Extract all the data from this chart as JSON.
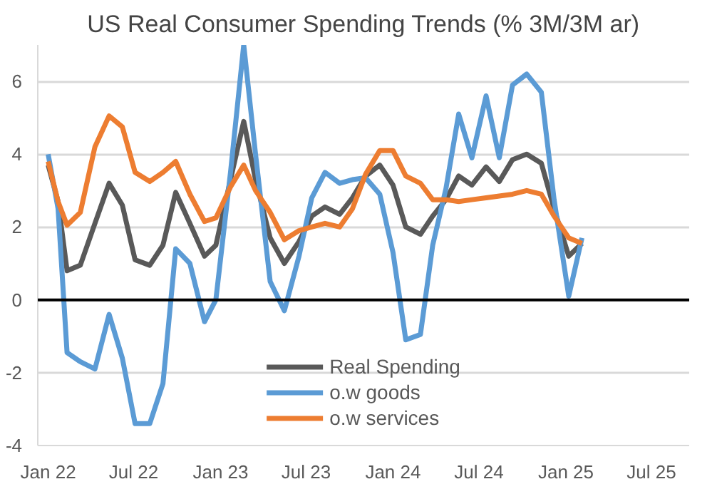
{
  "chart_data": {
    "type": "line",
    "title": "US Real Consumer Spending Trends (% 3M/3M ar)",
    "x": [
      "2022-01-01",
      "2022-01-22",
      "2022-02-10",
      "2022-03-10",
      "2022-04-10",
      "2022-05-10",
      "2022-06-07",
      "2022-07-04",
      "2022-08-04",
      "2022-09-01",
      "2022-09-28",
      "2022-10-28",
      "2022-11-28",
      "2022-12-22",
      "2023-01-22",
      "2023-02-19",
      "2023-03-16",
      "2023-04-16",
      "2023-05-16",
      "2023-06-16",
      "2023-07-13",
      "2023-08-10",
      "2023-09-10",
      "2023-10-07",
      "2023-11-04",
      "2023-12-04",
      "2024-01-01",
      "2024-01-28",
      "2024-02-28",
      "2024-03-25",
      "2024-04-22",
      "2024-05-19",
      "2024-06-16",
      "2024-07-16",
      "2024-08-13",
      "2024-09-10",
      "2024-10-10",
      "2024-11-10",
      "2024-12-07",
      "2025-01-07",
      "2025-02-04"
    ],
    "series": [
      {
        "name": "Real Spending",
        "color": "#595959",
        "values": [
          3.7,
          2.7,
          0.8,
          0.95,
          2.1,
          3.2,
          2.6,
          1.1,
          0.95,
          1.5,
          2.95,
          2.1,
          1.2,
          1.5,
          3.3,
          4.9,
          3.3,
          1.7,
          1.0,
          1.6,
          2.3,
          2.55,
          2.35,
          2.8,
          3.4,
          3.7,
          3.15,
          2.0,
          1.8,
          2.3,
          2.75,
          3.4,
          3.15,
          3.65,
          3.25,
          3.85,
          4.0,
          3.75,
          2.5,
          1.2,
          1.55
        ]
      },
      {
        "name": "o.w goods",
        "color": "#5b9bd5",
        "values": [
          4.0,
          2.5,
          -1.45,
          -1.7,
          -1.9,
          -0.4,
          -1.6,
          -3.4,
          -3.4,
          -2.3,
          1.4,
          1.0,
          -0.6,
          0.0,
          3.5,
          7.0,
          4.0,
          0.5,
          -0.3,
          1.2,
          2.8,
          3.5,
          3.2,
          3.3,
          3.35,
          2.9,
          1.3,
          -1.1,
          -0.95,
          1.5,
          3.05,
          5.1,
          3.9,
          5.6,
          3.9,
          5.9,
          6.2,
          5.7,
          2.75,
          0.1,
          1.7
        ]
      },
      {
        "name": "o.w services",
        "color": "#ed7d31",
        "values": [
          3.8,
          2.7,
          2.05,
          2.4,
          4.2,
          5.05,
          4.75,
          3.5,
          3.25,
          3.5,
          3.8,
          2.9,
          2.15,
          2.25,
          3.1,
          3.7,
          3.0,
          2.4,
          1.65,
          1.9,
          2.0,
          2.1,
          2.0,
          2.5,
          3.45,
          4.1,
          4.1,
          3.4,
          3.2,
          2.75,
          2.75,
          2.7,
          2.75,
          2.8,
          2.85,
          2.9,
          3.0,
          2.9,
          2.3,
          1.7,
          1.55
        ]
      }
    ],
    "xlim": [
      "2021-12-10",
      "2025-09-19"
    ],
    "xticks": [
      {
        "value": "2022-01-01",
        "label": "Jan 22"
      },
      {
        "value": "2022-07-01",
        "label": "Jul 22"
      },
      {
        "value": "2023-01-01",
        "label": "Jan 23"
      },
      {
        "value": "2023-07-01",
        "label": "Jul 23"
      },
      {
        "value": "2024-01-01",
        "label": "Jan 24"
      },
      {
        "value": "2024-07-01",
        "label": "Jul 24"
      },
      {
        "value": "2025-01-01",
        "label": "Jan 25"
      },
      {
        "value": "2025-07-01",
        "label": "Jul 25"
      }
    ],
    "ylim": [
      -4,
      7
    ],
    "yticks": [
      -4,
      -2,
      0,
      2,
      4,
      6
    ],
    "ref_lines": [
      {
        "axis": "y",
        "value": 0,
        "color": "#000000"
      }
    ],
    "grid": "y",
    "legend": "bottom",
    "marker": "none",
    "line_style": "solid"
  }
}
